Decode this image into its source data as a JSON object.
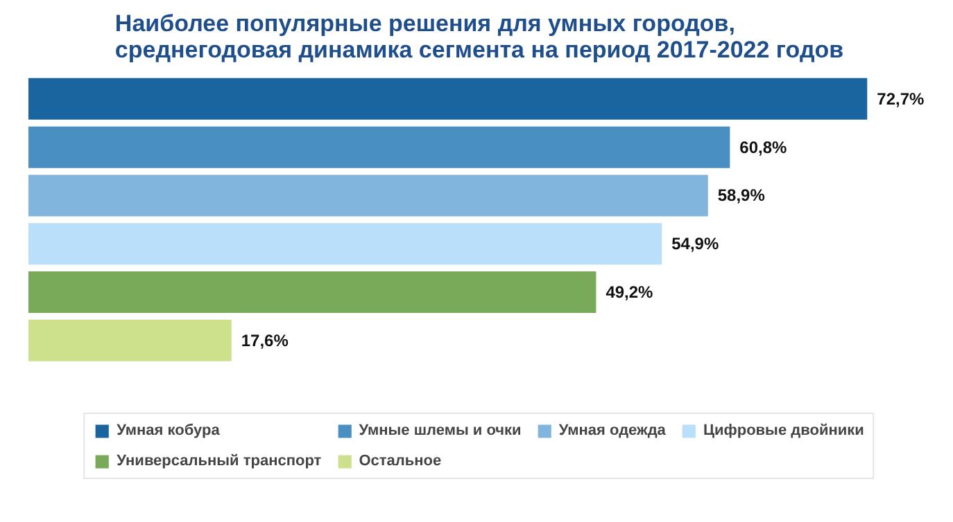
{
  "chart_data": {
    "type": "bar",
    "orientation": "horizontal",
    "title": "Наиболее популярные решения для умных городов,\nсреднегодовая динамика сегмента на период 2017-2022 годов",
    "categories": [
      null,
      null,
      null,
      null,
      null,
      null
    ],
    "series": [
      {
        "name": "Умная кобура",
        "color": "#1a64a0",
        "values": [
          72.7,
          null,
          null,
          null,
          null,
          null
        ],
        "value_labels": [
          "72,7%",
          null,
          null,
          null,
          null,
          null
        ]
      },
      {
        "name": "Умные шлемы и очки",
        "color": "#4a8fc2",
        "values": [
          null,
          60.8,
          null,
          null,
          null,
          null
        ],
        "value_labels": [
          null,
          "60,8%",
          null,
          null,
          null,
          null
        ]
      },
      {
        "name": "Умная одежда",
        "color": "#82b5de",
        "values": [
          null,
          null,
          58.9,
          null,
          null,
          null
        ],
        "value_labels": [
          null,
          null,
          "58,9%",
          null,
          null,
          null
        ]
      },
      {
        "name": "Цифровые двойники",
        "color": "#b9dffa",
        "values": [
          null,
          null,
          null,
          54.9,
          null,
          null
        ],
        "value_labels": [
          null,
          null,
          null,
          "54,9%",
          null,
          null
        ]
      },
      {
        "name": "Универсальный транспорт",
        "color": "#78aa5a",
        "values": [
          null,
          null,
          null,
          null,
          49.2,
          null
        ],
        "value_labels": [
          null,
          null,
          null,
          null,
          "49,2%",
          null
        ]
      },
      {
        "name": "Остальное",
        "color": "#cde08c",
        "values": [
          null,
          null,
          null,
          null,
          null,
          17.6
        ],
        "value_labels": [
          null,
          null,
          null,
          null,
          null,
          "17,6%"
        ]
      }
    ],
    "stacked": true,
    "legend": "bottom"
  }
}
